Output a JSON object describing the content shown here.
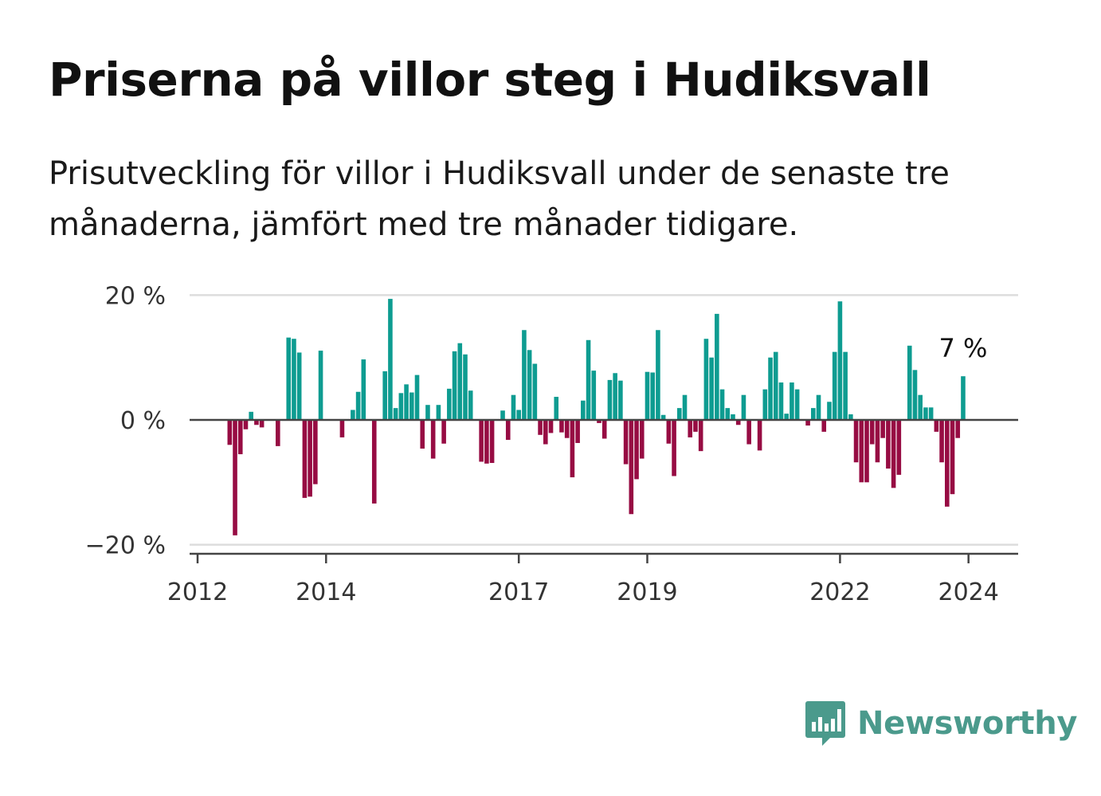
{
  "header": {
    "title": "Priserna på villor steg i Hudiksvall",
    "subtitle": "Prisutveckling för villor i Hudiksvall under de senaste tre månaderna, jämfört med tre månader tidigare."
  },
  "brand": {
    "name": "Newsworthy",
    "logo_icon": "bar-chart-speech-bubble-icon",
    "color": "#4b9a8c"
  },
  "colors": {
    "positive": "#0e9c91",
    "negative": "#970c43",
    "axis": "#444444",
    "grid": "#dddddd"
  },
  "chart_data": {
    "type": "bar",
    "title": "Priserna på villor steg i Hudiksvall",
    "subtitle": "Prisutveckling för villor i Hudiksvall under de senaste tre månaderna, jämfört med tre månader tidigare.",
    "xlabel": "",
    "ylabel": "",
    "x_start": "2012-01",
    "x_end": "2024-09",
    "x_ticks": [
      "2012",
      "2014",
      "2017",
      "2019",
      "2022",
      "2024"
    ],
    "y_ticks": [
      "20 %",
      "0 %",
      "−20 %"
    ],
    "y_tick_values": [
      20,
      0,
      -20
    ],
    "ylim": [
      -21,
      20
    ],
    "grid": true,
    "last_value_label": "7 %",
    "series": [
      {
        "values": [
          [
            "2012-07",
            -4.0
          ],
          [
            "2012-08",
            -18.5
          ],
          [
            "2012-09",
            -5.5
          ],
          [
            "2012-10",
            -1.5
          ],
          [
            "2012-11",
            1.3
          ],
          [
            "2012-12",
            -0.8
          ],
          [
            "2013-01",
            -1.2
          ],
          [
            "2013-04",
            -4.2
          ],
          [
            "2013-06",
            13.2
          ],
          [
            "2013-07",
            13.0
          ],
          [
            "2013-08",
            10.8
          ],
          [
            "2013-09",
            -12.5
          ],
          [
            "2013-10",
            -12.3
          ],
          [
            "2013-11",
            -10.3
          ],
          [
            "2013-12",
            11.1
          ],
          [
            "2014-04",
            -2.8
          ],
          [
            "2014-06",
            1.6
          ],
          [
            "2014-07",
            4.5
          ],
          [
            "2014-08",
            9.7
          ],
          [
            "2014-10",
            -13.4
          ],
          [
            "2014-12",
            7.8
          ],
          [
            "2015-01",
            19.4
          ],
          [
            "2015-02",
            1.9
          ],
          [
            "2015-03",
            4.3
          ],
          [
            "2015-04",
            5.7
          ],
          [
            "2015-05",
            4.4
          ],
          [
            "2015-06",
            7.2
          ],
          [
            "2015-07",
            -4.6
          ],
          [
            "2015-08",
            2.4
          ],
          [
            "2015-09",
            -6.2
          ],
          [
            "2015-10",
            2.4
          ],
          [
            "2015-11",
            -3.8
          ],
          [
            "2015-12",
            5.0
          ],
          [
            "2016-01",
            11.0
          ],
          [
            "2016-02",
            12.3
          ],
          [
            "2016-03",
            10.5
          ],
          [
            "2016-04",
            4.7
          ],
          [
            "2016-06",
            -6.7
          ],
          [
            "2016-07",
            -7.0
          ],
          [
            "2016-08",
            -6.9
          ],
          [
            "2016-10",
            1.5
          ],
          [
            "2016-11",
            -3.2
          ],
          [
            "2016-12",
            4.0
          ],
          [
            "2017-01",
            1.6
          ],
          [
            "2017-02",
            14.4
          ],
          [
            "2017-03",
            11.2
          ],
          [
            "2017-04",
            9.0
          ],
          [
            "2017-05",
            -2.4
          ],
          [
            "2017-06",
            -3.9
          ],
          [
            "2017-07",
            -2.1
          ],
          [
            "2017-08",
            3.7
          ],
          [
            "2017-09",
            -2.0
          ],
          [
            "2017-10",
            -2.9
          ],
          [
            "2017-11",
            -9.2
          ],
          [
            "2017-12",
            -3.7
          ],
          [
            "2018-01",
            3.1
          ],
          [
            "2018-02",
            12.8
          ],
          [
            "2018-03",
            7.9
          ],
          [
            "2018-04",
            -0.5
          ],
          [
            "2018-05",
            -3.0
          ],
          [
            "2018-06",
            6.4
          ],
          [
            "2018-07",
            7.5
          ],
          [
            "2018-08",
            6.3
          ],
          [
            "2018-09",
            -7.1
          ],
          [
            "2018-10",
            -15.1
          ],
          [
            "2018-11",
            -9.5
          ],
          [
            "2018-12",
            -6.2
          ],
          [
            "2019-01",
            7.7
          ],
          [
            "2019-02",
            7.6
          ],
          [
            "2019-03",
            14.4
          ],
          [
            "2019-04",
            0.8
          ],
          [
            "2019-05",
            -3.8
          ],
          [
            "2019-06",
            -9.0
          ],
          [
            "2019-07",
            1.9
          ],
          [
            "2019-08",
            4.0
          ],
          [
            "2019-09",
            -2.8
          ],
          [
            "2019-10",
            -1.9
          ],
          [
            "2019-11",
            -5.0
          ],
          [
            "2019-12",
            13.0
          ],
          [
            "2020-01",
            10.0
          ],
          [
            "2020-02",
            17.0
          ],
          [
            "2020-03",
            4.9
          ],
          [
            "2020-04",
            1.9
          ],
          [
            "2020-05",
            0.9
          ],
          [
            "2020-06",
            -0.8
          ],
          [
            "2020-07",
            4.0
          ],
          [
            "2020-08",
            -3.9
          ],
          [
            "2020-10",
            -4.9
          ],
          [
            "2020-11",
            4.9
          ],
          [
            "2020-12",
            10.0
          ],
          [
            "2021-01",
            10.9
          ],
          [
            "2021-02",
            6.0
          ],
          [
            "2021-03",
            1.0
          ],
          [
            "2021-04",
            6.0
          ],
          [
            "2021-05",
            4.9
          ],
          [
            "2021-07",
            -0.9
          ],
          [
            "2021-08",
            1.9
          ],
          [
            "2021-09",
            4.0
          ],
          [
            "2021-10",
            -1.9
          ],
          [
            "2021-11",
            2.9
          ],
          [
            "2021-12",
            10.9
          ],
          [
            "2022-01",
            19.0
          ],
          [
            "2022-02",
            10.9
          ],
          [
            "2022-03",
            0.9
          ],
          [
            "2022-04",
            -6.8
          ],
          [
            "2022-05",
            -10.0
          ],
          [
            "2022-06",
            -10.0
          ],
          [
            "2022-07",
            -3.9
          ],
          [
            "2022-08",
            -6.8
          ],
          [
            "2022-09",
            -2.9
          ],
          [
            "2022-10",
            -7.8
          ],
          [
            "2022-11",
            -10.9
          ],
          [
            "2022-12",
            -8.8
          ],
          [
            "2023-02",
            11.9
          ],
          [
            "2023-03",
            8.0
          ],
          [
            "2023-04",
            4.0
          ],
          [
            "2023-05",
            2.0
          ],
          [
            "2023-06",
            2.0
          ],
          [
            "2023-07",
            -1.9
          ],
          [
            "2023-08",
            -6.8
          ],
          [
            "2023-09",
            -13.9
          ],
          [
            "2023-10",
            -11.9
          ],
          [
            "2023-11",
            -2.9
          ],
          [
            "2023-12",
            7.0
          ]
        ]
      }
    ]
  }
}
